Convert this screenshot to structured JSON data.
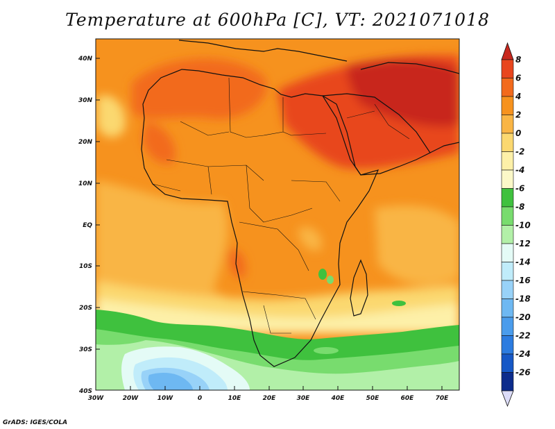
{
  "map": {
    "title": "Temperature at 600hPa [C], VT: 2021071018",
    "credit": "GrADS: IGES/COLA",
    "variable": "Temperature",
    "level": "600hPa",
    "units": "C",
    "valid_time": "2021071018",
    "lat_ticks": [
      "40N",
      "30N",
      "20N",
      "10N",
      "EQ",
      "10S",
      "20S",
      "30S",
      "40S"
    ],
    "lon_ticks": [
      "30W",
      "20W",
      "10W",
      "0",
      "10E",
      "20E",
      "30E",
      "40E",
      "50E",
      "60E",
      "70E"
    ]
  },
  "colorbar": {
    "labels": [
      "8",
      "6",
      "4",
      "2",
      "0",
      "-2",
      "-4",
      "-6",
      "-8",
      "-10",
      "-12",
      "-14",
      "-16",
      "-18",
      "-20",
      "-22",
      "-24",
      "-26"
    ],
    "colors": [
      "#c8281e",
      "#e8461e",
      "#f26a1c",
      "#f6921e",
      "#f9b545",
      "#fbd870",
      "#fdf0a8",
      "#fbf8c8",
      "#3fc13e",
      "#78dc6e",
      "#b2f0a8",
      "#e4fbf6",
      "#c0ecfa",
      "#98d2f8",
      "#6eb8f2",
      "#4a9cec",
      "#2c7ce0",
      "#1658c6",
      "#0c2c8c"
    ],
    "max_color": "#c8281e",
    "min_color": "#dcdcf8"
  }
}
